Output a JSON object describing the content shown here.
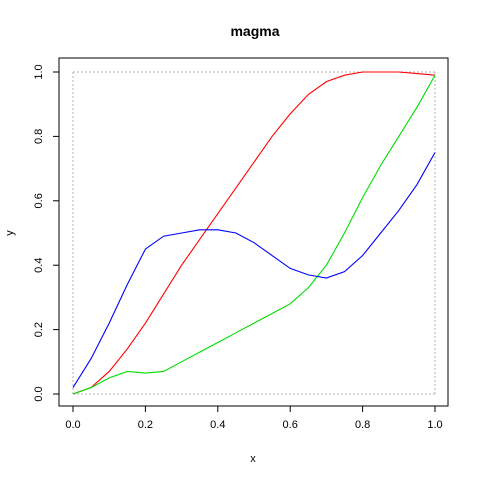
{
  "chart_data": {
    "type": "line",
    "title": "magma",
    "xlabel": "x",
    "ylabel": "y",
    "xlim": [
      0,
      1
    ],
    "ylim": [
      0,
      1
    ],
    "x_ticks": [
      0.0,
      0.2,
      0.4,
      0.6,
      0.8,
      1.0
    ],
    "y_ticks": [
      0.0,
      0.2,
      0.4,
      0.6,
      0.8,
      1.0
    ],
    "x_tick_labels": [
      "0.0",
      "0.2",
      "0.4",
      "0.6",
      "0.8",
      "1.0"
    ],
    "y_tick_labels": [
      "0.0",
      "0.2",
      "0.4",
      "0.6",
      "0.8",
      "1.0"
    ],
    "grid": false,
    "reference_lines": [
      {
        "orientation": "horizontal",
        "y": 0,
        "style": "dotted",
        "color": "#b0b0b0"
      },
      {
        "orientation": "horizontal",
        "y": 1,
        "style": "dotted",
        "color": "#b0b0b0"
      },
      {
        "orientation": "vertical",
        "x": 0,
        "style": "dotted",
        "color": "#b0b0b0"
      },
      {
        "orientation": "vertical",
        "x": 1,
        "style": "dotted",
        "color": "#b0b0b0"
      }
    ],
    "x": [
      0.0,
      0.05,
      0.1,
      0.15,
      0.2,
      0.25,
      0.3,
      0.35,
      0.4,
      0.45,
      0.5,
      0.55,
      0.6,
      0.65,
      0.7,
      0.75,
      0.8,
      0.85,
      0.9,
      0.95,
      1.0
    ],
    "series": [
      {
        "color": "#ff0000",
        "values": [
          0.0,
          0.02,
          0.07,
          0.14,
          0.22,
          0.31,
          0.4,
          0.48,
          0.56,
          0.64,
          0.72,
          0.8,
          0.87,
          0.93,
          0.97,
          0.99,
          1.0,
          1.0,
          1.0,
          0.995,
          0.99
        ]
      },
      {
        "color": "#00dd00",
        "values": [
          0.0,
          0.02,
          0.05,
          0.07,
          0.065,
          0.07,
          0.1,
          0.13,
          0.16,
          0.19,
          0.22,
          0.25,
          0.28,
          0.33,
          0.4,
          0.5,
          0.61,
          0.71,
          0.8,
          0.89,
          0.99
        ]
      },
      {
        "color": "#0000ff",
        "values": [
          0.02,
          0.11,
          0.22,
          0.34,
          0.45,
          0.49,
          0.5,
          0.51,
          0.51,
          0.5,
          0.47,
          0.43,
          0.39,
          0.37,
          0.36,
          0.38,
          0.43,
          0.5,
          0.57,
          0.65,
          0.75
        ]
      }
    ]
  }
}
